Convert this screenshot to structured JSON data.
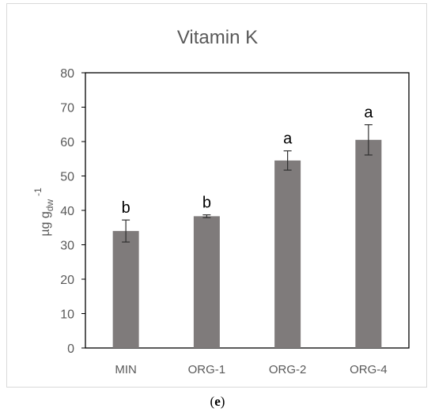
{
  "chart_data": {
    "type": "bar",
    "title": "Vitamin K",
    "ylabel": {
      "base": "µg g",
      "sub": "dw",
      "sup": "-1"
    },
    "categories": [
      "MIN",
      "ORG-1",
      "ORG-2",
      "ORG-4"
    ],
    "values": [
      34.0,
      38.3,
      54.5,
      60.5
    ],
    "errors": [
      3.2,
      0.4,
      2.8,
      4.4
    ],
    "significance": [
      "b",
      "b",
      "a",
      "a"
    ],
    "ylim": [
      0,
      80
    ],
    "yticks": [
      0,
      10,
      20,
      30,
      40,
      50,
      60,
      70,
      80
    ],
    "grid": false,
    "legend": "none",
    "bar_color": "#7f7b7b"
  },
  "caption": {
    "open": "(",
    "label": "e",
    "close": ")"
  }
}
